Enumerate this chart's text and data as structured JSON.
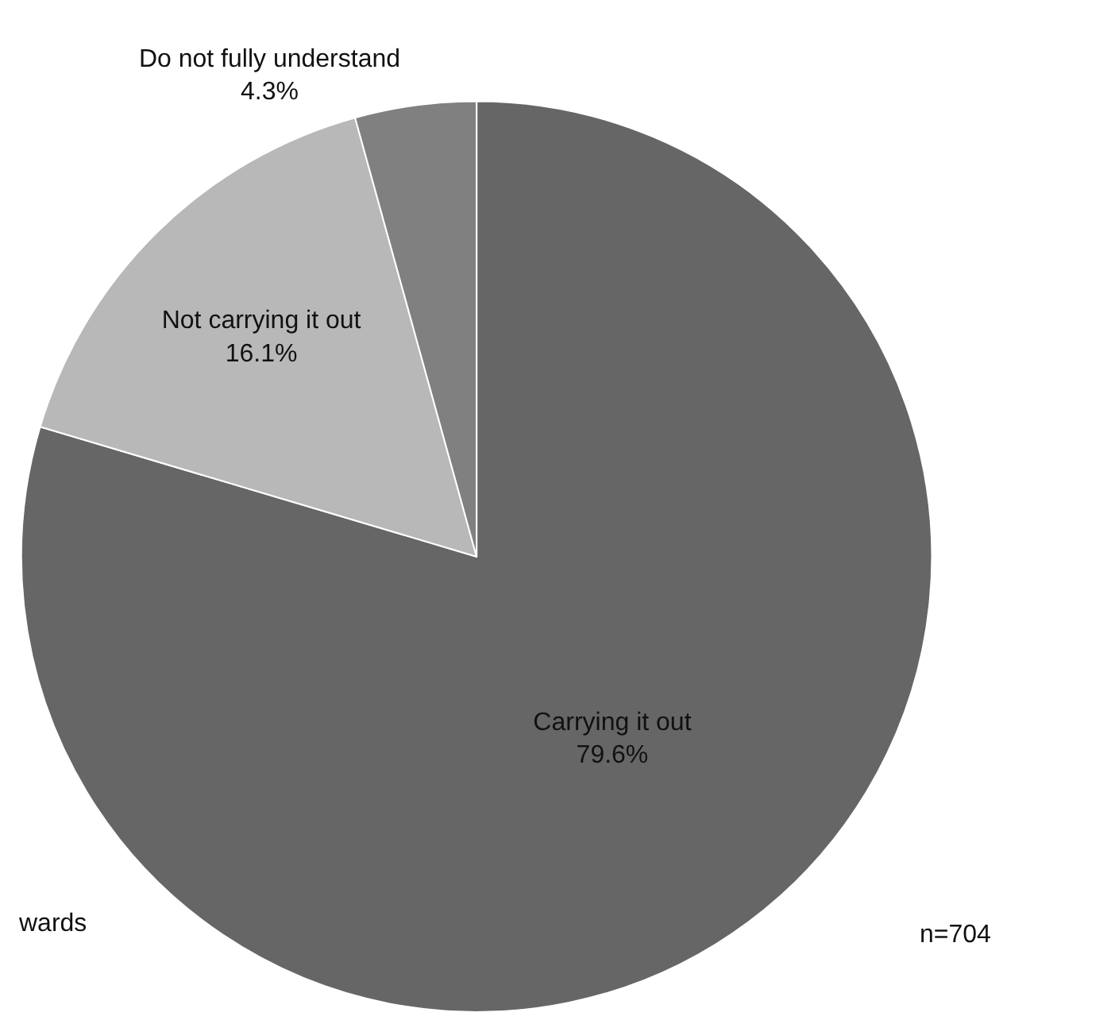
{
  "chart_data": {
    "type": "pie",
    "categories": [
      "Carrying it out",
      "Not carrying it out",
      "Do not fully understand"
    ],
    "values": [
      79.6,
      16.1,
      4.3
    ],
    "value_labels": [
      "79.6%",
      "16.1%",
      "4.3%"
    ],
    "colors": [
      "#666666",
      "#b8b8b8",
      "#808080"
    ],
    "annotations": [
      "n=704",
      "wards"
    ],
    "legend": false
  }
}
